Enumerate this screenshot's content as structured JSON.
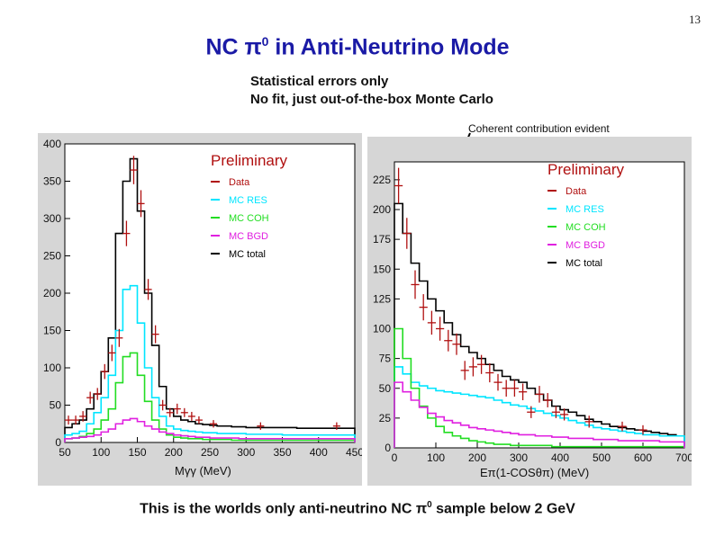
{
  "slide_number": "13",
  "title": {
    "prefix": "NC ",
    "symbol": "π",
    "sup": "0",
    "suffix": " in Anti-Neutrino Mode"
  },
  "subtitle_lines": [
    "Statistical errors only",
    "No fit, just out-of-the-box Monte Carlo"
  ],
  "annotation": "Coherent contribution evident",
  "footer": {
    "prefix": "This is the worlds only anti-neutrino NC ",
    "symbol": "π",
    "sup": "0",
    "suffix": " sample below 2 GeV"
  },
  "colors": {
    "data": "#b01010",
    "res": "#00e5ff",
    "coh": "#22dd22",
    "bgd": "#e020e0",
    "total": "#000000",
    "panel": "#d6d6d6",
    "title": "#1a1aa6"
  },
  "chart_data": [
    {
      "type": "histogram",
      "xlabel": "Mγγ (MeV)",
      "xlim": [
        50,
        450
      ],
      "ylim": [
        0,
        400
      ],
      "xticks": [
        50,
        100,
        150,
        200,
        250,
        300,
        350,
        400,
        450
      ],
      "yticks": [
        0,
        50,
        100,
        150,
        200,
        250,
        300,
        350,
        400
      ],
      "legend_title": "Preliminary",
      "legend_placement": "top-right",
      "legend": [
        {
          "key": "data",
          "label": "Data"
        },
        {
          "key": "res",
          "label": "MC RES"
        },
        {
          "key": "coh",
          "label": "MC COH"
        },
        {
          "key": "bgd",
          "label": "MC BGD"
        },
        {
          "key": "total",
          "label": "MC total"
        }
      ],
      "bin_edges": [
        50,
        60,
        70,
        80,
        90,
        100,
        110,
        120,
        130,
        140,
        150,
        160,
        170,
        180,
        190,
        200,
        210,
        220,
        230,
        240,
        250,
        260,
        270,
        280,
        290,
        300,
        310,
        320,
        330,
        340,
        350,
        360,
        370,
        380,
        390,
        400,
        410,
        420,
        430,
        440,
        450
      ],
      "series": [
        {
          "key": "total",
          "values": [
            20,
            25,
            30,
            45,
            65,
            95,
            140,
            280,
            350,
            380,
            310,
            200,
            130,
            75,
            45,
            35,
            30,
            28,
            25,
            24,
            23,
            22,
            22,
            21,
            21,
            20,
            20,
            20,
            20,
            20,
            20,
            20,
            19,
            19,
            19,
            19,
            19,
            19,
            19,
            19
          ]
        },
        {
          "key": "res",
          "values": [
            10,
            12,
            15,
            25,
            40,
            60,
            90,
            150,
            205,
            210,
            160,
            100,
            60,
            35,
            22,
            18,
            16,
            15,
            14,
            13,
            13,
            12,
            12,
            12,
            12,
            11,
            11,
            11,
            11,
            11,
            10,
            10,
            10,
            10,
            10,
            10,
            10,
            10,
            10,
            10
          ]
        },
        {
          "key": "coh",
          "values": [
            5,
            6,
            8,
            12,
            18,
            30,
            45,
            80,
            115,
            120,
            90,
            55,
            30,
            18,
            10,
            7,
            6,
            5,
            5,
            4,
            4,
            4,
            4,
            3,
            3,
            3,
            3,
            3,
            3,
            3,
            3,
            3,
            3,
            3,
            3,
            3,
            3,
            3,
            3,
            3
          ]
        },
        {
          "key": "bgd",
          "values": [
            5,
            6,
            7,
            8,
            10,
            14,
            18,
            25,
            30,
            32,
            28,
            22,
            18,
            14,
            12,
            10,
            9,
            8,
            7,
            7,
            6,
            6,
            6,
            6,
            5,
            5,
            5,
            5,
            5,
            5,
            5,
            5,
            5,
            5,
            5,
            5,
            5,
            5,
            5,
            5
          ]
        }
      ],
      "data_points": [
        {
          "x": 55,
          "y": 30,
          "err": 6
        },
        {
          "x": 65,
          "y": 30,
          "err": 6
        },
        {
          "x": 75,
          "y": 35,
          "err": 7
        },
        {
          "x": 85,
          "y": 60,
          "err": 8
        },
        {
          "x": 95,
          "y": 65,
          "err": 8
        },
        {
          "x": 105,
          "y": 95,
          "err": 10
        },
        {
          "x": 115,
          "y": 120,
          "err": 11
        },
        {
          "x": 125,
          "y": 140,
          "err": 12
        },
        {
          "x": 135,
          "y": 280,
          "err": 17
        },
        {
          "x": 145,
          "y": 365,
          "err": 19
        },
        {
          "x": 155,
          "y": 320,
          "err": 18
        },
        {
          "x": 165,
          "y": 205,
          "err": 14
        },
        {
          "x": 175,
          "y": 145,
          "err": 12
        },
        {
          "x": 185,
          "y": 50,
          "err": 7
        },
        {
          "x": 195,
          "y": 40,
          "err": 6
        },
        {
          "x": 205,
          "y": 45,
          "err": 7
        },
        {
          "x": 215,
          "y": 40,
          "err": 6
        },
        {
          "x": 225,
          "y": 35,
          "err": 6
        },
        {
          "x": 235,
          "y": 30,
          "err": 5
        },
        {
          "x": 255,
          "y": 25,
          "err": 5
        },
        {
          "x": 320,
          "y": 22,
          "err": 5
        },
        {
          "x": 425,
          "y": 22,
          "err": 5
        }
      ]
    },
    {
      "type": "histogram",
      "xlabel": "Eπ(1-COSθπ) (MeV)",
      "xlim": [
        0,
        700
      ],
      "ylim": [
        0,
        240
      ],
      "xticks": [
        0,
        100,
        200,
        300,
        400,
        500,
        600,
        700
      ],
      "yticks": [
        0,
        25,
        50,
        75,
        100,
        125,
        150,
        175,
        200,
        225
      ],
      "legend_title": "Preliminary",
      "legend_placement": "top-right",
      "legend": [
        {
          "key": "data",
          "label": "Data"
        },
        {
          "key": "res",
          "label": "MC RES"
        },
        {
          "key": "coh",
          "label": "MC COH"
        },
        {
          "key": "bgd",
          "label": "MC BGD"
        },
        {
          "key": "total",
          "label": "MC total"
        }
      ],
      "bin_edges": [
        0,
        20,
        40,
        60,
        80,
        100,
        120,
        140,
        160,
        180,
        200,
        220,
        240,
        260,
        280,
        300,
        320,
        340,
        360,
        380,
        400,
        420,
        440,
        460,
        480,
        500,
        520,
        540,
        560,
        580,
        600,
        620,
        640,
        660,
        680,
        700
      ],
      "series": [
        {
          "key": "total",
          "values": [
            205,
            180,
            155,
            140,
            125,
            115,
            105,
            95,
            85,
            80,
            75,
            70,
            65,
            60,
            57,
            55,
            50,
            45,
            40,
            35,
            32,
            30,
            27,
            24,
            22,
            20,
            18,
            17,
            16,
            15,
            14,
            13,
            12,
            11,
            10
          ]
        },
        {
          "key": "res",
          "values": [
            68,
            62,
            55,
            52,
            50,
            48,
            47,
            46,
            45,
            44,
            43,
            42,
            40,
            38,
            36,
            35,
            33,
            31,
            29,
            27,
            25,
            23,
            21,
            19,
            17,
            16,
            15,
            14,
            13,
            12,
            11,
            11,
            10,
            10,
            10
          ]
        },
        {
          "key": "coh",
          "values": [
            100,
            75,
            50,
            35,
            25,
            18,
            13,
            10,
            8,
            6,
            5,
            4,
            3,
            3,
            2,
            2,
            2,
            2,
            2,
            1,
            1,
            1,
            1,
            1,
            1,
            1,
            1,
            1,
            1,
            1,
            1,
            1,
            1,
            1,
            1
          ]
        },
        {
          "key": "bgd",
          "values": [
            55,
            47,
            40,
            34,
            29,
            26,
            23,
            21,
            19,
            17,
            16,
            15,
            14,
            13,
            12,
            11,
            11,
            10,
            10,
            9,
            9,
            8,
            8,
            8,
            7,
            7,
            7,
            6,
            6,
            6,
            6,
            6,
            5,
            5,
            5
          ]
        }
      ],
      "data_points": [
        {
          "x": 10,
          "y": 220,
          "err": 15
        },
        {
          "x": 30,
          "y": 180,
          "err": 13
        },
        {
          "x": 50,
          "y": 137,
          "err": 12
        },
        {
          "x": 70,
          "y": 118,
          "err": 11
        },
        {
          "x": 90,
          "y": 105,
          "err": 10
        },
        {
          "x": 110,
          "y": 100,
          "err": 10
        },
        {
          "x": 130,
          "y": 90,
          "err": 9
        },
        {
          "x": 150,
          "y": 87,
          "err": 9
        },
        {
          "x": 170,
          "y": 65,
          "err": 8
        },
        {
          "x": 190,
          "y": 68,
          "err": 8
        },
        {
          "x": 210,
          "y": 70,
          "err": 8
        },
        {
          "x": 230,
          "y": 63,
          "err": 8
        },
        {
          "x": 250,
          "y": 55,
          "err": 7
        },
        {
          "x": 270,
          "y": 50,
          "err": 7
        },
        {
          "x": 290,
          "y": 50,
          "err": 7
        },
        {
          "x": 310,
          "y": 47,
          "err": 7
        },
        {
          "x": 330,
          "y": 30,
          "err": 5
        },
        {
          "x": 350,
          "y": 45,
          "err": 7
        },
        {
          "x": 370,
          "y": 40,
          "err": 6
        },
        {
          "x": 390,
          "y": 30,
          "err": 5
        },
        {
          "x": 410,
          "y": 28,
          "err": 5
        },
        {
          "x": 470,
          "y": 22,
          "err": 5
        },
        {
          "x": 550,
          "y": 18,
          "err": 4
        },
        {
          "x": 600,
          "y": 15,
          "err": 4
        }
      ]
    }
  ]
}
